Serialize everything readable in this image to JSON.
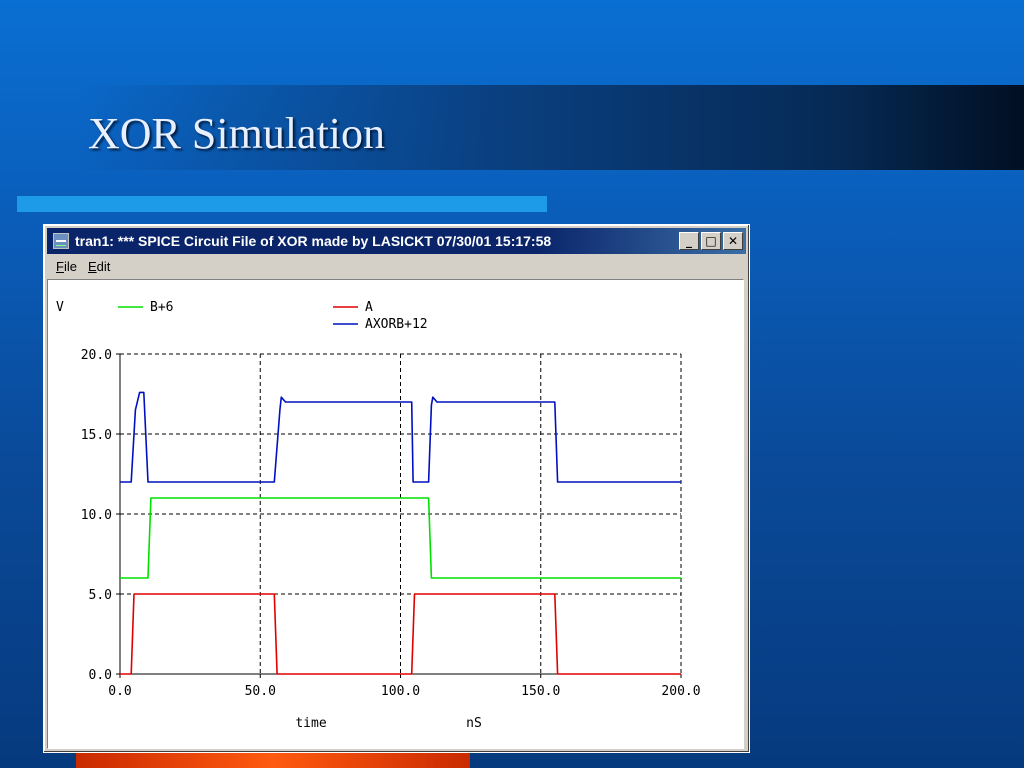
{
  "slide": {
    "title": "XOR Simulation"
  },
  "window": {
    "title": "tran1: *** SPICE Circuit File of XOR made by LASICKT 07/30/01 15:17:58",
    "menu": [
      {
        "label": "File",
        "accel": "F"
      },
      {
        "label": "Edit",
        "accel": "E"
      }
    ],
    "buttons": {
      "minimize": "_",
      "maximize": "□",
      "close": "✕"
    }
  },
  "chart_data": {
    "type": "line",
    "title": "",
    "xlabel": "time",
    "xunit": "nS",
    "ylabel": "V",
    "xlim": [
      0,
      200
    ],
    "ylim": [
      0,
      20
    ],
    "x_ticks": [
      "0.0",
      "50.0",
      "100.0",
      "150.0",
      "200.0"
    ],
    "y_ticks": [
      "0.0",
      "5.0",
      "10.0",
      "15.0",
      "20.0"
    ],
    "grid": true,
    "grid_style": "dashed",
    "legend_placement": "top",
    "series": [
      {
        "name": "B+6",
        "color": "#00e000",
        "points": [
          [
            0,
            6
          ],
          [
            10,
            6
          ],
          [
            11,
            11
          ],
          [
            110,
            11
          ],
          [
            111,
            6
          ],
          [
            200,
            6
          ]
        ]
      },
      {
        "name": "A",
        "color": "#e00000",
        "points": [
          [
            0,
            0
          ],
          [
            4,
            0
          ],
          [
            5,
            5
          ],
          [
            55,
            5
          ],
          [
            56,
            0
          ],
          [
            104,
            0
          ],
          [
            105,
            5
          ],
          [
            155,
            5
          ],
          [
            156,
            0
          ],
          [
            200,
            0
          ]
        ]
      },
      {
        "name": "AXORB+12",
        "color": "#0010c0",
        "points": [
          [
            0,
            12
          ],
          [
            4,
            12
          ],
          [
            5.5,
            16.5
          ],
          [
            7,
            17.6
          ],
          [
            8.5,
            17.6
          ],
          [
            10,
            12
          ],
          [
            55,
            12
          ],
          [
            57,
            16.5
          ],
          [
            57.5,
            17.3
          ],
          [
            59,
            17
          ],
          [
            104,
            17
          ],
          [
            104.5,
            12
          ],
          [
            110,
            12
          ],
          [
            111,
            16.8
          ],
          [
            111.5,
            17.3
          ],
          [
            113,
            17
          ],
          [
            155,
            17
          ],
          [
            156,
            12
          ],
          [
            200,
            12
          ]
        ]
      }
    ]
  }
}
